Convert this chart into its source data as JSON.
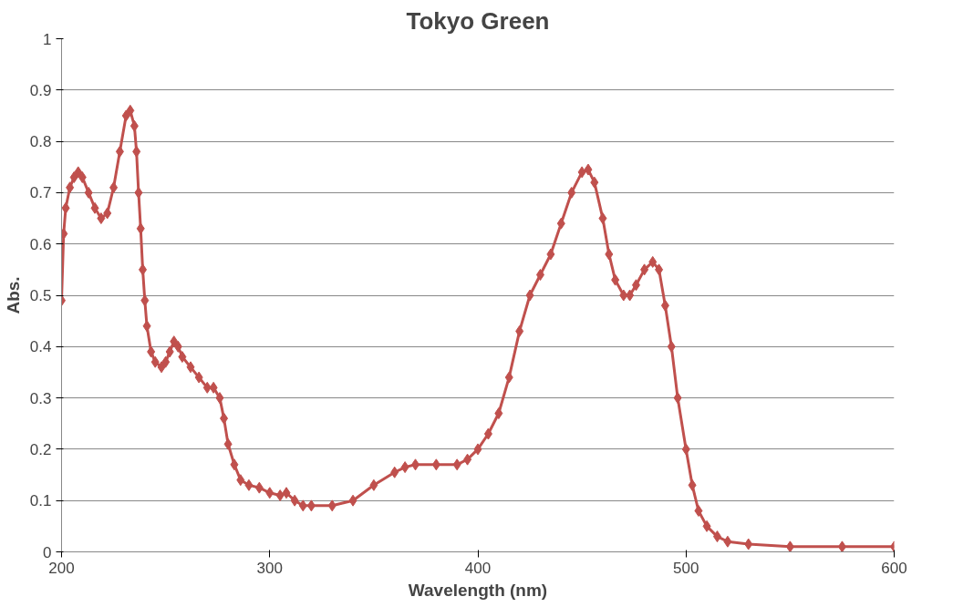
{
  "chart_data": {
    "type": "line",
    "title": "Tokyo Green",
    "xlabel": "Wavelength (nm)",
    "ylabel": "Abs.",
    "x": [
      200,
      201,
      202,
      204,
      206,
      208,
      210,
      213,
      216,
      219,
      222,
      225,
      228,
      231,
      233,
      235,
      236,
      237,
      238,
      239,
      240,
      241,
      243,
      245,
      248,
      250,
      252,
      254,
      256,
      258,
      262,
      266,
      270,
      273,
      276,
      278,
      280,
      283,
      286,
      290,
      295,
      300,
      305,
      308,
      312,
      316,
      320,
      330,
      340,
      350,
      360,
      365,
      370,
      380,
      390,
      395,
      400,
      405,
      410,
      415,
      420,
      425,
      430,
      435,
      440,
      445,
      450,
      453,
      456,
      460,
      463,
      466,
      470,
      473,
      476,
      480,
      484,
      487,
      490,
      493,
      496,
      500,
      503,
      506,
      510,
      515,
      520,
      530,
      550,
      575,
      600
    ],
    "series": [
      {
        "color": "#c0504d",
        "values": [
          0.49,
          0.62,
          0.67,
          0.71,
          0.73,
          0.74,
          0.73,
          0.7,
          0.67,
          0.65,
          0.66,
          0.71,
          0.78,
          0.85,
          0.86,
          0.83,
          0.78,
          0.7,
          0.63,
          0.55,
          0.49,
          0.44,
          0.39,
          0.37,
          0.36,
          0.37,
          0.39,
          0.41,
          0.4,
          0.38,
          0.36,
          0.34,
          0.32,
          0.32,
          0.3,
          0.26,
          0.21,
          0.17,
          0.14,
          0.13,
          0.125,
          0.115,
          0.11,
          0.115,
          0.1,
          0.09,
          0.09,
          0.09,
          0.1,
          0.13,
          0.155,
          0.165,
          0.17,
          0.17,
          0.17,
          0.18,
          0.2,
          0.23,
          0.27,
          0.34,
          0.43,
          0.5,
          0.54,
          0.58,
          0.64,
          0.7,
          0.74,
          0.745,
          0.72,
          0.65,
          0.58,
          0.53,
          0.5,
          0.5,
          0.52,
          0.55,
          0.565,
          0.55,
          0.48,
          0.4,
          0.3,
          0.2,
          0.13,
          0.08,
          0.05,
          0.03,
          0.02,
          0.015,
          0.01,
          0.01,
          0.01
        ]
      }
    ],
    "xlim": [
      200,
      600
    ],
    "xticks": [
      200,
      300,
      400,
      500,
      600
    ],
    "ylim": [
      0,
      1
    ],
    "yticks": [
      0,
      0.1,
      0.2,
      0.3,
      0.4,
      0.5,
      0.6,
      0.7,
      0.8,
      0.9,
      1
    ],
    "grid": "y",
    "marker": "diamond",
    "line_style": "solid"
  }
}
